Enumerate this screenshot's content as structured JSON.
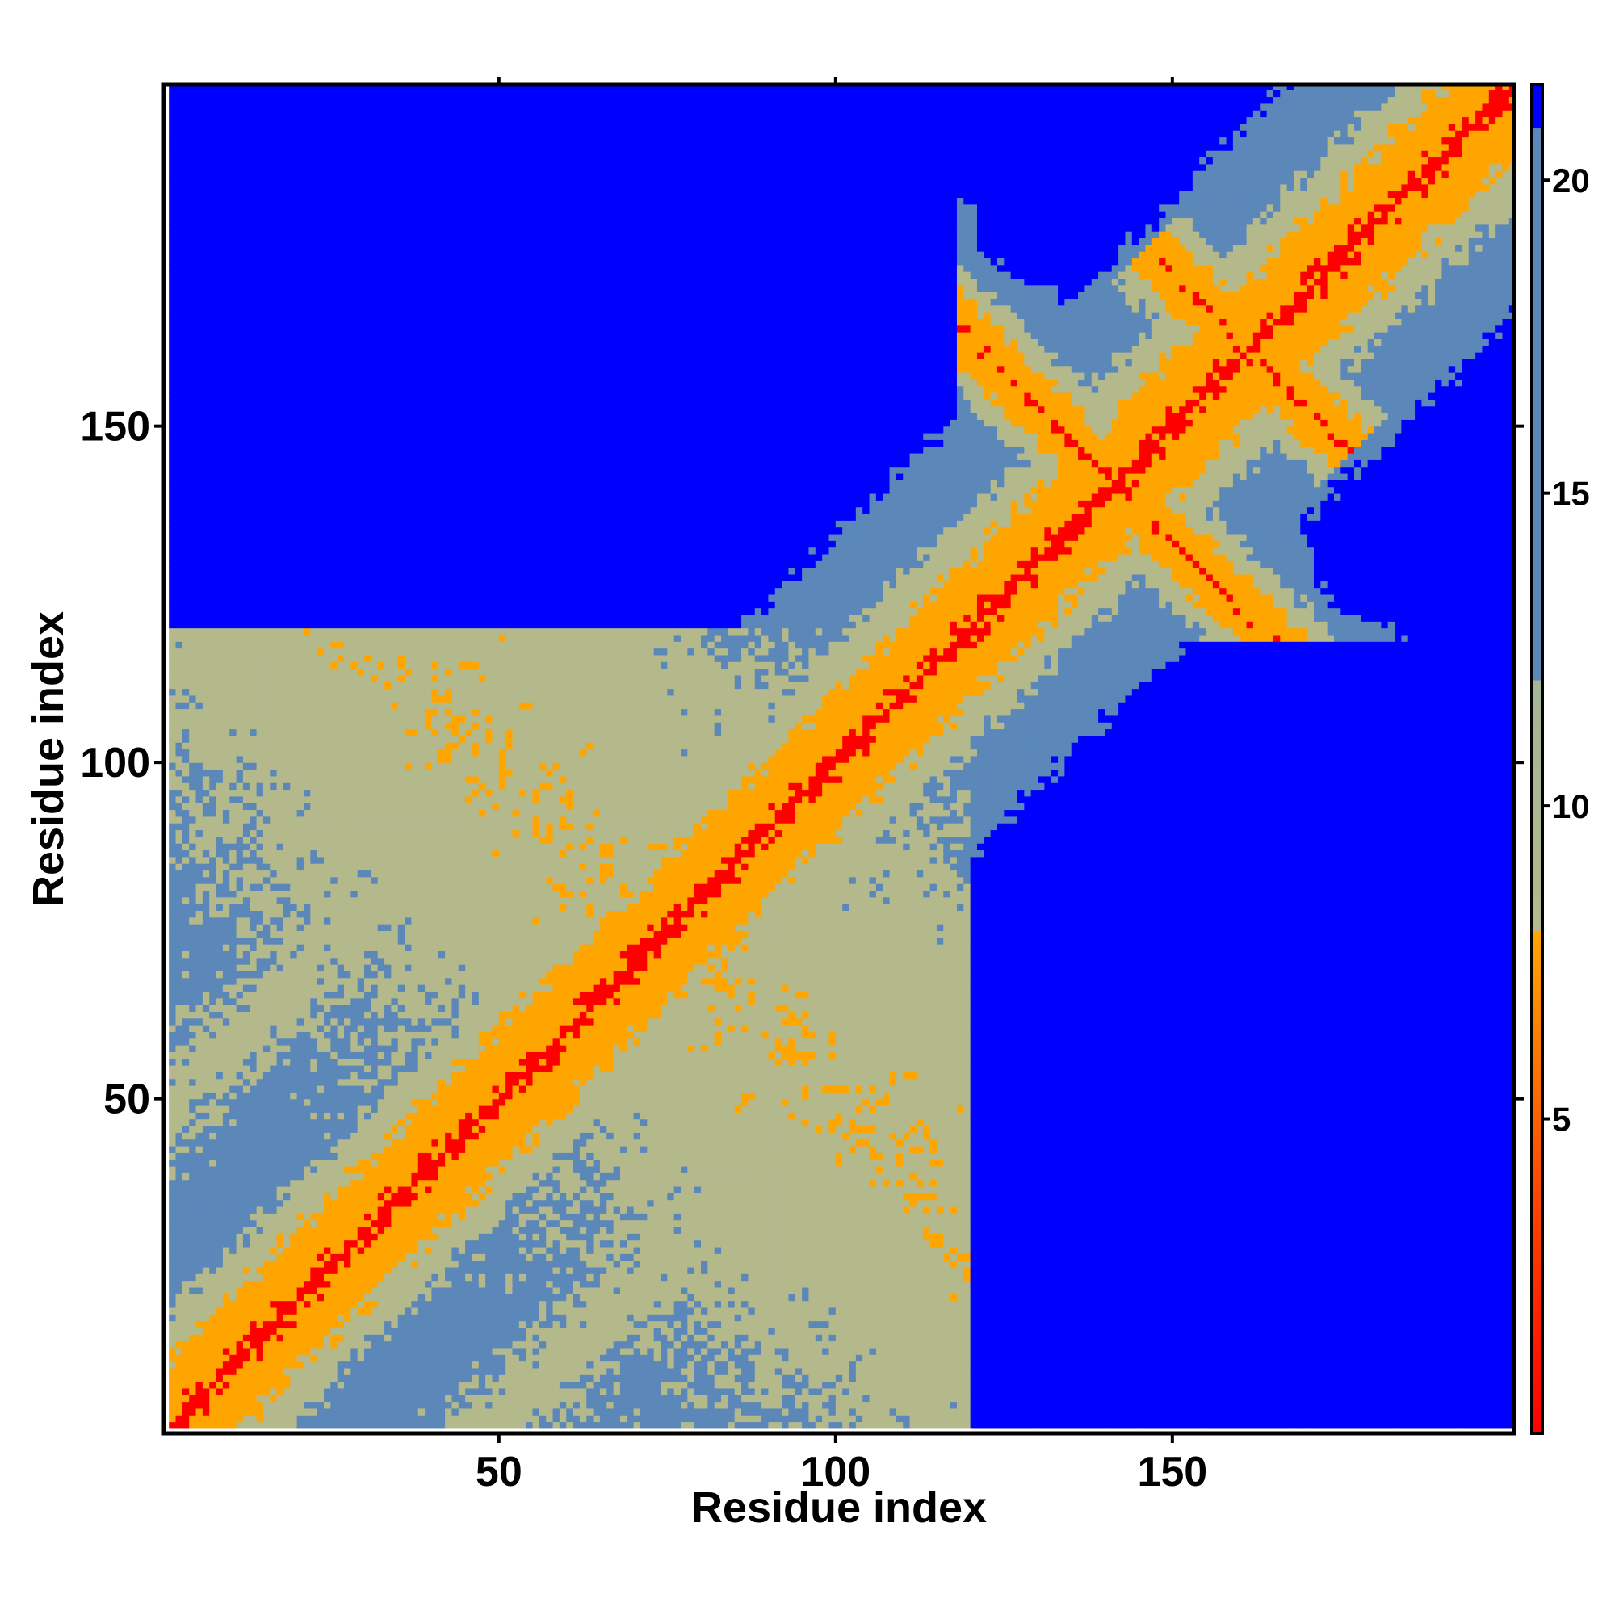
{
  "chart_data": {
    "type": "heatmap",
    "title": "",
    "xlabel": "Residue index",
    "ylabel": "Residue index",
    "x_range": [
      1,
      200
    ],
    "y_range": [
      1,
      200
    ],
    "x_ticks": [
      50,
      100,
      150
    ],
    "y_ticks": [
      50,
      100,
      150
    ],
    "colorbar": {
      "ticks": [
        5,
        10,
        15,
        20
      ],
      "range": [
        0,
        21.5
      ],
      "placement": "right",
      "stops": [
        {
          "value": 0,
          "color": "#ff0000"
        },
        {
          "value": 4,
          "color": "#ff4a00"
        },
        {
          "value": 8,
          "color": "#ffa500"
        },
        {
          "value": 8.01,
          "color": "#b4b98c"
        },
        {
          "value": 12,
          "color": "#a3b696"
        },
        {
          "value": 12.01,
          "color": "#5b87b9"
        },
        {
          "value": 20.8,
          "color": "#5b87b9"
        },
        {
          "value": 20.81,
          "color": "#0000ff"
        },
        {
          "value": 21.5,
          "color": "#0000ff"
        }
      ]
    },
    "colors": {
      "contact": "#ff0000",
      "near": "#ffa500",
      "medium": "#b4b98c",
      "far": "#5b87b9",
      "very_far": "#0000ff"
    },
    "features": {
      "diagonal": "distance increases from 0 along the main diagonal",
      "domain_1_residues": [
        1,
        120
      ],
      "domain_2_residues": [
        120,
        200
      ],
      "cross_contacts_domain_2": [
        [
          122,
          168
        ],
        [
          138,
          142
        ],
        [
          152,
          165
        ]
      ]
    }
  }
}
